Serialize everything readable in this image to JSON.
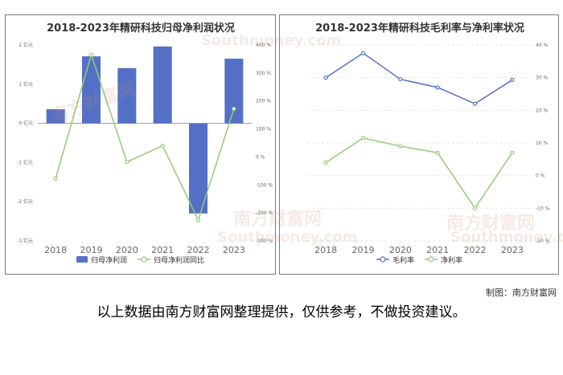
{
  "watermark": {
    "cn": "南方财富网",
    "en": "Southmoney.com"
  },
  "source": "制图：南方财富网",
  "disclaimer": "以上数据由南方财富网整理提供，仅供参考，不做投资建议。",
  "colors": {
    "bar": "#5470c6",
    "line_green": "#91cc75",
    "line_blue": "#5470c6",
    "axis": "#666666",
    "grid": "#e6e6e6"
  },
  "chart_data": [
    {
      "type": "bar",
      "title": "2018-2023年精研科技归母净利润状况",
      "categories": [
        "2018",
        "2019",
        "2020",
        "2021",
        "2022",
        "2023"
      ],
      "series": [
        {
          "name": "归母净利润",
          "type": "bar",
          "axis": "left",
          "values": [
            0.36,
            1.71,
            1.41,
            1.96,
            -2.3,
            1.65
          ]
        },
        {
          "name": "归母净利润同比",
          "type": "line",
          "axis": "right",
          "values": [
            -77,
            365,
            -18,
            40,
            -225,
            172
          ]
        }
      ],
      "y_left": {
        "ticks": [
          -3,
          -2,
          -1,
          0,
          1,
          2
        ],
        "tick_labels": [
          "-3 亿元",
          "-2 亿元",
          "-1 亿元",
          "0 亿元",
          "1 亿元",
          "2 亿元"
        ],
        "range": [
          -3,
          2
        ]
      },
      "y_right": {
        "ticks": [
          -300,
          -200,
          -100,
          0,
          100,
          200,
          300,
          400
        ],
        "tick_labels": [
          "-300 %",
          "-200 %",
          "-100 %",
          "0 %",
          "100 %",
          "200 %",
          "300 %",
          "400 %"
        ],
        "range": [
          -300,
          400
        ]
      },
      "legend": [
        "归母净利润",
        "归母净利润同比"
      ],
      "legend_position": "bottom"
    },
    {
      "type": "line",
      "title": "2018-2023年精研科技毛利率与净利率状况",
      "categories": [
        "2018",
        "2019",
        "2020",
        "2021",
        "2022",
        "2023"
      ],
      "series": [
        {
          "name": "毛利率",
          "values": [
            30.0,
            37.5,
            29.5,
            27.0,
            22.0,
            29.3
          ]
        },
        {
          "name": "净利率",
          "values": [
            4.0,
            11.5,
            9.0,
            7.0,
            -10.0,
            7.0
          ]
        }
      ],
      "y": {
        "ticks": [
          -20,
          -10,
          0,
          10,
          20,
          30,
          40
        ],
        "tick_labels": [
          "-20 %",
          "-10 %",
          "0 %",
          "10 %",
          "20 %",
          "30 %",
          "40 %"
        ],
        "range": [
          -20,
          40
        ]
      },
      "legend": [
        "毛利率",
        "净利率"
      ],
      "legend_position": "bottom"
    }
  ]
}
